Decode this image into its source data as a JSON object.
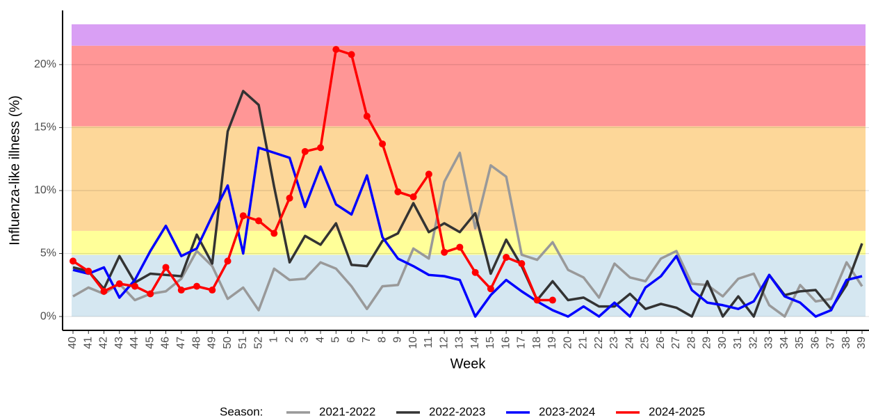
{
  "chart_data": {
    "type": "line",
    "x_label": "Week",
    "y_label": "Influenza-like illness (%)",
    "legend_title": "Season:",
    "categories": [
      "40",
      "41",
      "42",
      "43",
      "44",
      "45",
      "46",
      "47",
      "48",
      "49",
      "50",
      "51",
      "52",
      "1",
      "2",
      "3",
      "4",
      "5",
      "6",
      "7",
      "8",
      "9",
      "10",
      "11",
      "12",
      "13",
      "14",
      "15",
      "16",
      "17",
      "18",
      "19",
      "20",
      "21",
      "22",
      "23",
      "24",
      "25",
      "26",
      "27",
      "28",
      "29",
      "30",
      "31",
      "32",
      "33",
      "34",
      "35",
      "36",
      "37",
      "38",
      "39"
    ],
    "ylim": [
      -1.1,
      24.3
    ],
    "yticks": [
      {
        "value": 0,
        "label": "0%"
      },
      {
        "value": 5,
        "label": "5%"
      },
      {
        "value": 10,
        "label": "10%"
      },
      {
        "value": 15,
        "label": "15%"
      },
      {
        "value": 20,
        "label": "20%"
      }
    ],
    "grid": true,
    "bands": [
      {
        "from": 0,
        "to": 4.9,
        "color": "#d5e7f1"
      },
      {
        "from": 4.9,
        "to": 6.8,
        "color": "#ffff99"
      },
      {
        "from": 6.8,
        "to": 15.1,
        "color": "#fdd799"
      },
      {
        "from": 15.1,
        "to": 21.5,
        "color": "#ff9696"
      },
      {
        "from": 21.5,
        "to": 23.2,
        "color": "#d99ff4"
      }
    ],
    "series": [
      {
        "name": "2021-2022",
        "color": "#999999",
        "markers": false,
        "values": [
          1.6,
          2.3,
          1.8,
          2.6,
          1.3,
          1.8,
          2.0,
          3.0,
          5.2,
          4.0,
          1.4,
          2.3,
          0.5,
          3.8,
          2.9,
          3.0,
          4.3,
          3.8,
          2.4,
          0.6,
          2.4,
          2.5,
          5.4,
          4.6,
          10.7,
          13.0,
          7.0,
          12.0,
          11.1,
          4.9,
          4.5,
          5.9,
          3.7,
          3.1,
          1.5,
          4.2,
          3.1,
          2.8,
          4.6,
          5.2,
          2.6,
          2.5,
          1.6,
          3.0,
          3.4,
          0.9,
          0.0,
          2.5,
          1.2,
          1.4,
          4.3,
          2.4
        ]
      },
      {
        "name": "2022-2023",
        "color": "#333333",
        "markers": false,
        "values": [
          3.9,
          3.6,
          2.2,
          4.8,
          2.7,
          3.4,
          3.3,
          3.2,
          6.5,
          4.2,
          14.7,
          17.9,
          16.8,
          10.3,
          4.3,
          6.4,
          5.7,
          7.4,
          4.1,
          4.0,
          6.0,
          6.6,
          9.0,
          6.7,
          7.4,
          6.7,
          8.2,
          3.4,
          6.1,
          4.0,
          1.3,
          2.8,
          1.3,
          1.5,
          0.8,
          0.8,
          1.8,
          0.6,
          1.0,
          0.7,
          0.0,
          2.8,
          0.0,
          1.6,
          0.0,
          3.3,
          1.7,
          2.0,
          2.1,
          0.6,
          2.5,
          5.8
        ]
      },
      {
        "name": "2023-2024",
        "color": "#0000ff",
        "markers": false,
        "values": [
          3.7,
          3.4,
          3.9,
          1.5,
          2.9,
          5.2,
          7.2,
          4.8,
          5.4,
          8.0,
          10.4,
          5.0,
          13.4,
          13.0,
          12.6,
          8.7,
          11.9,
          8.9,
          8.1,
          11.2,
          6.3,
          4.6,
          4.0,
          3.3,
          3.2,
          2.9,
          0.0,
          1.7,
          2.9,
          2.0,
          1.2,
          0.5,
          0.0,
          0.8,
          0.0,
          1.1,
          0.0,
          2.3,
          3.2,
          4.8,
          2.1,
          1.1,
          0.9,
          0.6,
          1.2,
          3.3,
          1.6,
          1.1,
          0.0,
          0.5,
          2.9,
          3.2
        ]
      },
      {
        "name": "2024-2025",
        "color": "#ff0000",
        "markers": true,
        "values": [
          4.4,
          3.6,
          2.0,
          2.6,
          2.4,
          1.8,
          3.9,
          2.1,
          2.4,
          2.1,
          4.4,
          8.0,
          7.6,
          6.6,
          9.4,
          13.1,
          13.4,
          21.2,
          20.8,
          15.9,
          13.7,
          9.9,
          9.5,
          11.3,
          5.1,
          5.5,
          3.5,
          2.2,
          4.7,
          4.2,
          1.3,
          1.3,
          null,
          null,
          null,
          null,
          null,
          null,
          null,
          null,
          null,
          null,
          null,
          null,
          null,
          null,
          null,
          null,
          null,
          null,
          null,
          null
        ]
      }
    ]
  }
}
